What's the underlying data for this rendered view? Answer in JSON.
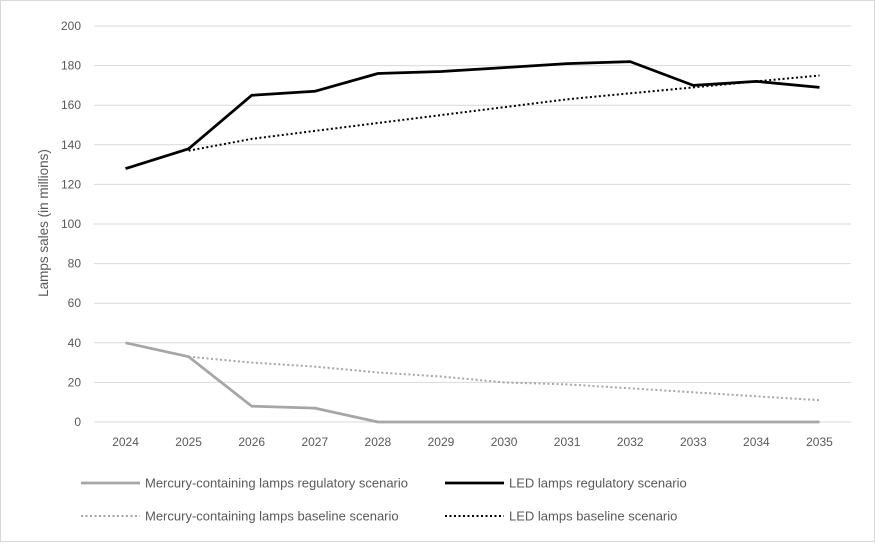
{
  "chart_data": {
    "type": "line",
    "title": "",
    "xlabel": "",
    "ylabel": "Lamps sales (in millions)",
    "ylim": [
      0,
      200
    ],
    "yticks": [
      0,
      20,
      40,
      60,
      80,
      100,
      120,
      140,
      160,
      180,
      200
    ],
    "grid": true,
    "legend_position": "bottom",
    "categories": [
      "2024",
      "2025",
      "2026",
      "2027",
      "2028",
      "2029",
      "2030",
      "2031",
      "2032",
      "2033",
      "2034",
      "2035"
    ],
    "series": [
      {
        "name": "Mercury-containing lamps regulatory scenario",
        "color": "#a6a6a6",
        "style": "solid",
        "values": [
          40,
          33,
          8,
          7,
          0,
          0,
          0,
          0,
          0,
          0,
          0,
          0
        ]
      },
      {
        "name": "LED lamps regulatory scenario",
        "color": "#000000",
        "style": "solid",
        "values": [
          128,
          138,
          165,
          167,
          176,
          177,
          179,
          181,
          182,
          170,
          172,
          169
        ]
      },
      {
        "name": "Mercury-containing lamps baseline scenario",
        "color": "#a6a6a6",
        "style": "dotted",
        "values": [
          null,
          33,
          30,
          28,
          25,
          23,
          20,
          19,
          17,
          15,
          13,
          11
        ]
      },
      {
        "name": "LED lamps baseline scenario",
        "color": "#000000",
        "style": "dotted",
        "values": [
          null,
          137,
          143,
          147,
          151,
          155,
          159,
          163,
          166,
          169,
          172,
          175
        ]
      }
    ]
  }
}
